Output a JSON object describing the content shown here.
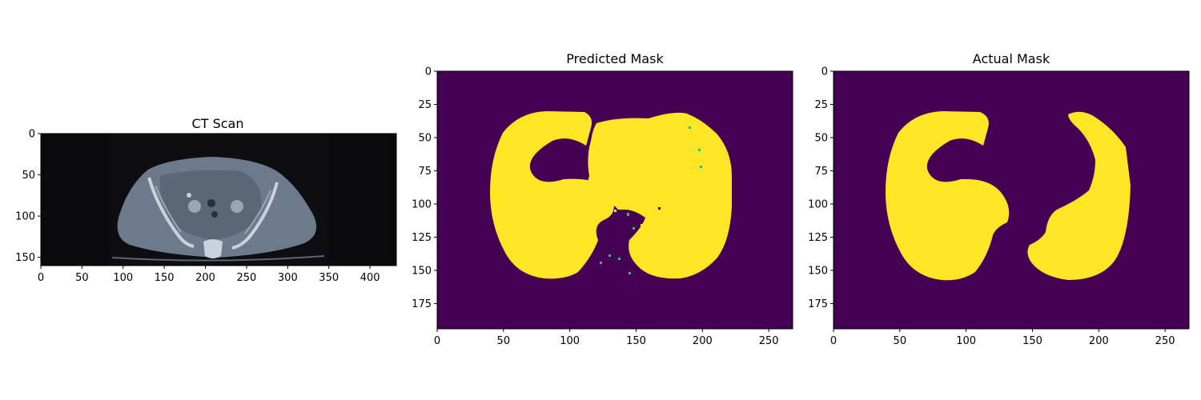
{
  "chart_data": [
    {
      "type": "image",
      "title": "CT Scan",
      "image_width": 432,
      "image_height": 160,
      "xticks": [
        0,
        50,
        100,
        150,
        200,
        250,
        300,
        350,
        400
      ],
      "yticks": [
        0,
        50,
        100,
        150
      ],
      "colors": {
        "background": "#0d0d12",
        "body": "#6d7a8c",
        "bone": "#c9d2dc",
        "dark_side_bands": "#0a0a0e"
      }
    },
    {
      "type": "heatmap",
      "title": "Predicted Mask",
      "image_width": 268,
      "image_height": 194,
      "xticks": [
        0,
        50,
        100,
        150,
        200,
        250
      ],
      "yticks": [
        0,
        25,
        50,
        75,
        100,
        125,
        150,
        175
      ],
      "colormap": "viridis",
      "colors": {
        "background": "#440154",
        "mask": "#fde725",
        "edge": "#35b779"
      }
    },
    {
      "type": "heatmap",
      "title": "Actual Mask",
      "image_width": 268,
      "image_height": 194,
      "xticks": [
        0,
        50,
        100,
        150,
        200,
        250
      ],
      "yticks": [
        0,
        25,
        50,
        75,
        100,
        125,
        150,
        175
      ],
      "colormap": "viridis",
      "colors": {
        "background": "#440154",
        "mask": "#fde725"
      }
    }
  ]
}
